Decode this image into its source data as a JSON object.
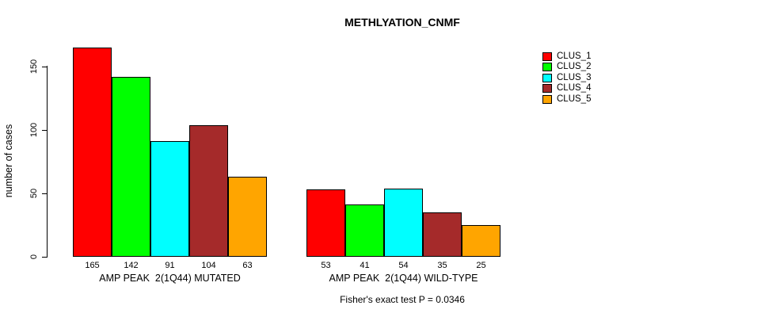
{
  "title": "METHLYATION_CNMF",
  "chart_data": {
    "type": "bar",
    "title": "METHLYATION_CNMF",
    "xlabel": "",
    "ylabel": "number of cases",
    "ylim": [
      0,
      165
    ],
    "yticks": [
      0,
      50,
      100,
      150
    ],
    "grid": false,
    "legend_position": "right",
    "legend": [
      {
        "label": "CLUS_1",
        "color": "#FF0000"
      },
      {
        "label": "CLUS_2",
        "color": "#00FF00"
      },
      {
        "label": "CLUS_3",
        "color": "#00FFFF"
      },
      {
        "label": "CLUS_4",
        "color": "#A52A2A"
      },
      {
        "label": "CLUS_5",
        "color": "#FFA500"
      }
    ],
    "groups": [
      {
        "label": "AMP PEAK  2(1Q44) MUTATED",
        "values": [
          165,
          142,
          91,
          104,
          63
        ]
      },
      {
        "label": "AMP PEAK  2(1Q44) WILD-TYPE",
        "values": [
          53,
          41,
          54,
          35,
          25
        ]
      }
    ],
    "annotation": "Fisher's exact test P = 0.0346"
  }
}
